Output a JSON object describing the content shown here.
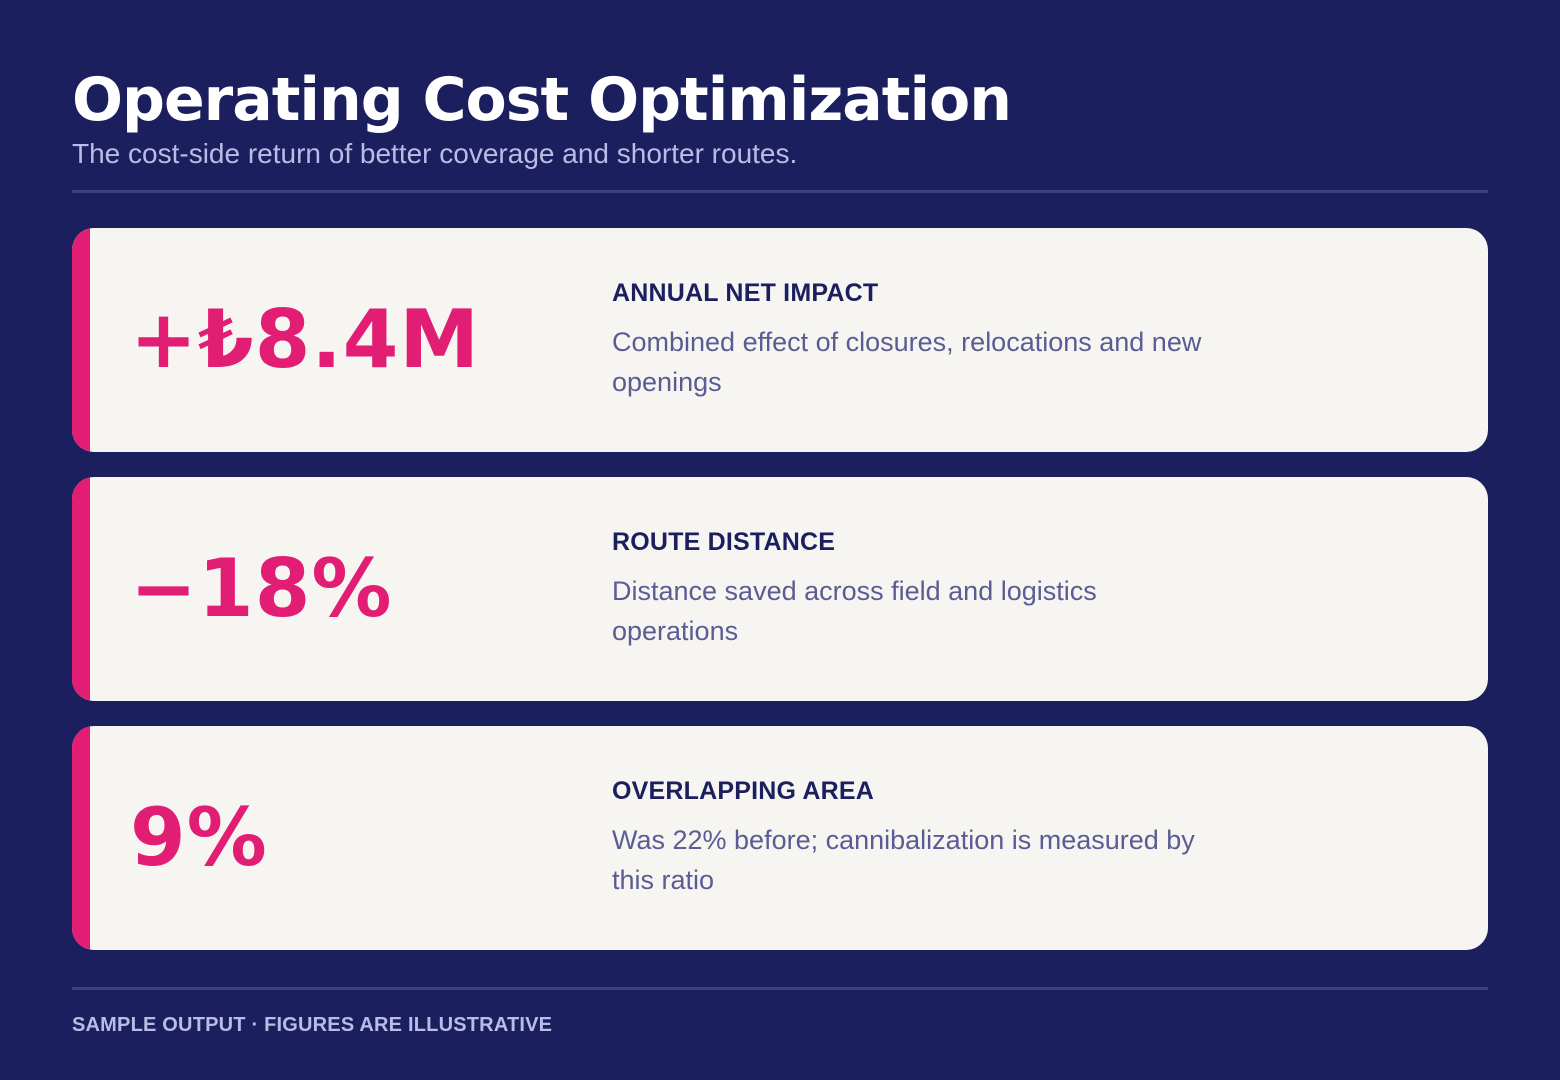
{
  "header": {
    "title": "Operating Cost Optimization",
    "subtitle": "The cost-side return of better coverage and shorter routes."
  },
  "cards": [
    {
      "metric": "+₺8.4M",
      "label": "ANNUAL NET IMPACT",
      "description": "Combined effect of closures, relocations and new openings"
    },
    {
      "metric": "−18%",
      "label": "ROUTE DISTANCE",
      "description": "Distance saved across field and logistics operations"
    },
    {
      "metric": "9%",
      "label": "OVERLAPPING AREA",
      "description": "Was 22% before; cannibalization is measured by this ratio"
    }
  ],
  "footer": {
    "note": "SAMPLE OUTPUT · FIGURES ARE ILLUSTRATIVE"
  },
  "colors": {
    "background": "#1c1f5e",
    "card": "#f6f5f2",
    "accent": "#e11d74",
    "label": "#1c1f5e",
    "description": "#5a5c93",
    "muted": "#b9bce6"
  }
}
